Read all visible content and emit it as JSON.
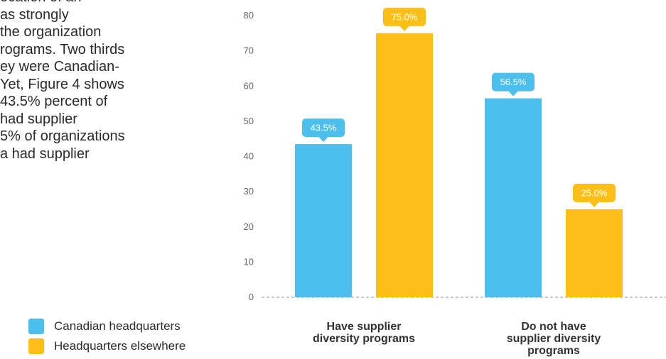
{
  "body_text": {
    "lines": [
      "ocation of an",
      "as strongly",
      "the organization",
      "rograms. Two thirds",
      "ey were Canadian-",
      "Yet, Figure 4 shows",
      "43.5% percent of",
      " had supplier",
      "5% of organizations",
      "a had supplier"
    ]
  },
  "legend": {
    "items": [
      {
        "label": "Canadian headquarters",
        "color": "#4dbfed"
      },
      {
        "label": "Headquarters elsewhere",
        "color": "#fbbf17"
      }
    ]
  },
  "chart_data": {
    "type": "bar",
    "categories": [
      "Have supplier diversity programs",
      "Do not have supplier diversity programs"
    ],
    "category_label_lines": [
      [
        "Have supplier",
        "diversity programs"
      ],
      [
        "Do not have",
        "supplier diversity",
        "programs"
      ]
    ],
    "series": [
      {
        "name": "Canadian headquarters",
        "values": [
          43.5,
          56.5
        ],
        "labels": [
          "43.5%",
          "56.5%"
        ],
        "color": "#4dbfed"
      },
      {
        "name": "Headquarters elsewhere",
        "values": [
          75.0,
          25.0
        ],
        "labels": [
          "75.0%",
          "25.0%"
        ],
        "color": "#fbbf17"
      }
    ],
    "ylim": [
      0,
      80
    ],
    "yticks": [
      0,
      10,
      20,
      30,
      40,
      50,
      60,
      70,
      80
    ],
    "grid": false,
    "legend_position": "bottom-left"
  }
}
